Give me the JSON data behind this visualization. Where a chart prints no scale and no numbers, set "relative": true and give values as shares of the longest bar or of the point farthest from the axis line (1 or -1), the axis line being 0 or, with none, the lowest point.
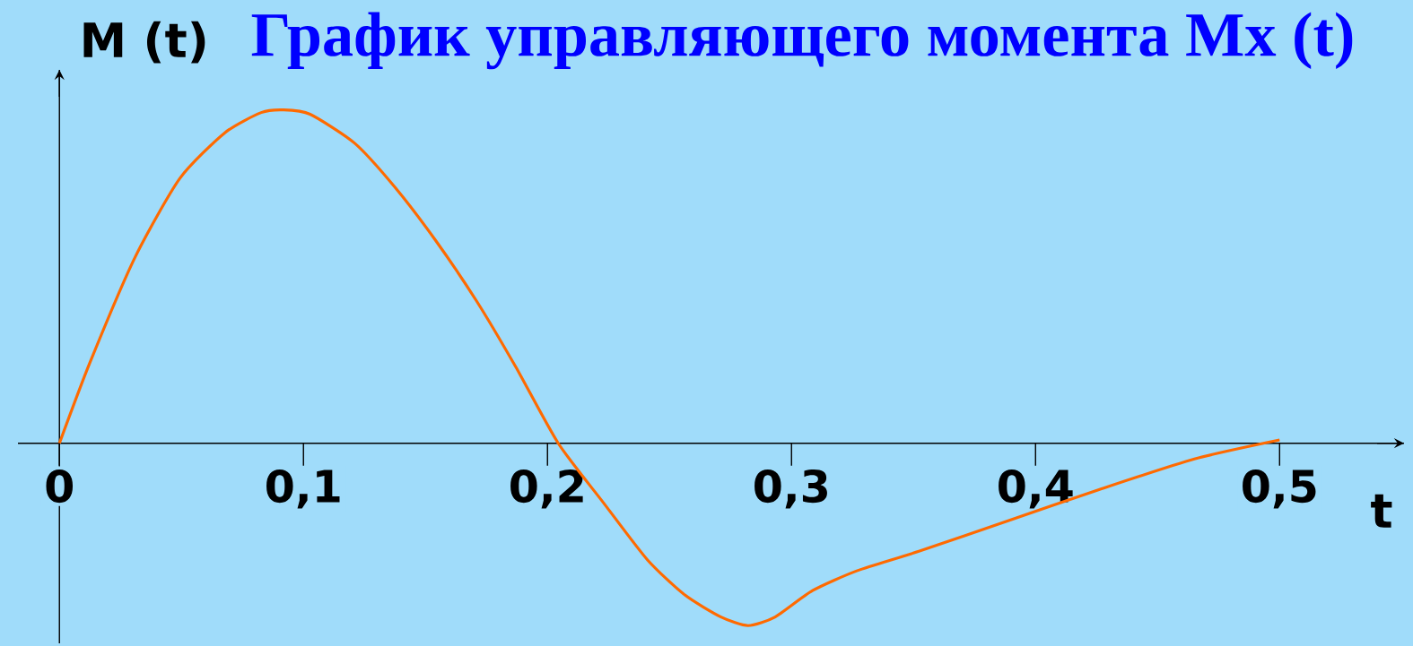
{
  "chart_data": {
    "type": "line",
    "title": "График управляющего момента Mx (t)",
    "xlabel": "t",
    "ylabel": "M (t)",
    "relative": true,
    "color": "#ff6a00",
    "x": [
      0,
      0.0125,
      0.031,
      0.0494,
      0.0679,
      0.0827,
      0.0919,
      0.1027,
      0.121,
      0.1375,
      0.154,
      0.171,
      0.187,
      0.2044,
      0.223,
      0.241,
      0.2563,
      0.2711,
      0.2822,
      0.2933,
      0.3086,
      0.327,
      0.3522,
      0.389,
      0.426,
      0.4651,
      0.5
    ],
    "values": [
      0,
      0.242,
      0.558,
      0.795,
      0.932,
      0.992,
      1.0,
      0.987,
      0.9,
      0.768,
      0.61,
      0.426,
      0.229,
      0,
      -0.179,
      -0.35,
      -0.455,
      -0.521,
      -0.547,
      -0.521,
      -0.442,
      -0.382,
      -0.324,
      -0.232,
      -0.139,
      -0.047,
      0.01
    ],
    "xlim": [
      -0.017,
      0.551
    ],
    "xticks": [
      {
        "value": 0,
        "label": "0"
      },
      {
        "value": 0.1,
        "label": "0,1"
      },
      {
        "value": 0.2,
        "label": "0,2"
      },
      {
        "value": 0.3,
        "label": "0,3"
      },
      {
        "value": 0.4,
        "label": "0,4"
      },
      {
        "value": 0.5,
        "label": "0,5"
      }
    ]
  }
}
